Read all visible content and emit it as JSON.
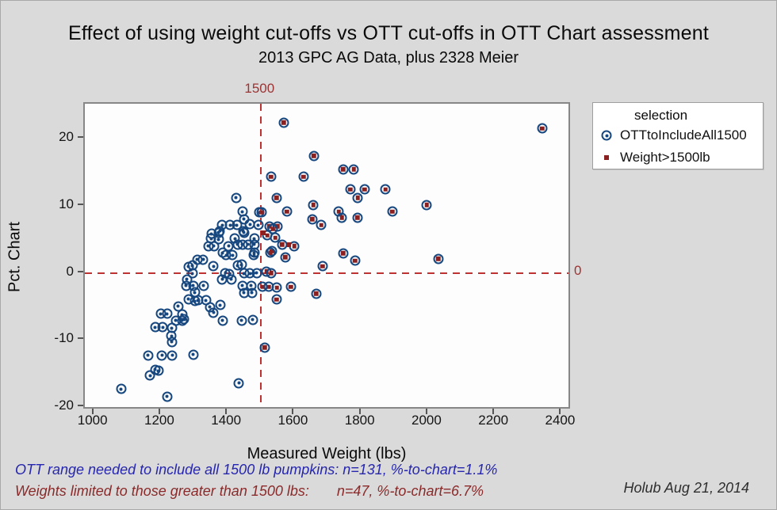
{
  "title": "Effect of using weight cut-offs vs OTT cut-offs in OTT Chart assessment",
  "subtitle": "2013 GPC AG Data, plus 2328 Meier",
  "chart_data": {
    "type": "scatter",
    "xlabel": "Measured Weight (lbs)",
    "ylabel": "Pct. Chart",
    "xlim": [
      972,
      2430
    ],
    "ylim": [
      -20.5,
      25.2
    ],
    "x_ticks": [
      1000,
      1200,
      1400,
      1600,
      1800,
      2000,
      2200,
      2400
    ],
    "y_ticks": [
      20,
      10,
      0,
      -10,
      -20
    ],
    "grid": false,
    "ref_line_x": {
      "value": 1500,
      "label": "1500"
    },
    "ref_line_y": {
      "value": 0,
      "label": "0"
    },
    "legend": {
      "title": "selection",
      "position": "top-right-outside",
      "entries": [
        {
          "label": "OTTtoIncludeAll1500",
          "marker": "circle-dot",
          "color": "#17477f",
          "n": 131
        },
        {
          "label": "Weight>1500lb",
          "marker": "square",
          "color": "#8b2020",
          "n": 47
        }
      ]
    },
    "points_note": "each point = [measured_weight_lbs, pct_chart]; ott_only = blue circled-dot, both = blue circle with red square center (in both selections), weight_only = red square only",
    "points": {
      "ott_only": [
        [
          1081,
          -17.3
        ],
        [
          1219,
          -18.4
        ],
        [
          1167,
          -15.3
        ],
        [
          1183,
          -14.4
        ],
        [
          1192,
          -14.6
        ],
        [
          1162,
          -12.3
        ],
        [
          1203,
          -12.3
        ],
        [
          1234,
          -12.3
        ],
        [
          1297,
          -12.2
        ],
        [
          1433,
          -16.4
        ],
        [
          1231,
          -9.4
        ],
        [
          1233,
          -10.3
        ],
        [
          1449,
          8.0
        ],
        [
          1183,
          -8.1
        ],
        [
          1205,
          -8.1
        ],
        [
          1233,
          -8.2
        ],
        [
          1269,
          -6.9
        ],
        [
          1200,
          -6.1
        ],
        [
          1219,
          -6.1
        ],
        [
          1264,
          -6.2
        ],
        [
          1245,
          -7.1
        ],
        [
          1264,
          -7.1
        ],
        [
          1252,
          -5.0
        ],
        [
          1494,
          9.0
        ],
        [
          1347,
          -5.1
        ],
        [
          1378,
          -4.8
        ],
        [
          1302,
          -4.2
        ],
        [
          1311,
          -4.1
        ],
        [
          1335,
          -4.1
        ],
        [
          1283,
          -3.9
        ],
        [
          1357,
          -5.9
        ],
        [
          1385,
          -7.1
        ],
        [
          1442,
          -7.1
        ],
        [
          1475,
          -7.0
        ],
        [
          1302,
          -2.9
        ],
        [
          1449,
          -3.0
        ],
        [
          1473,
          -3.0
        ],
        [
          1276,
          -1.9
        ],
        [
          1297,
          -1.9
        ],
        [
          1328,
          -1.9
        ],
        [
          1444,
          -1.9
        ],
        [
          1470,
          -1.9
        ],
        [
          1278,
          -1.0
        ],
        [
          1383,
          -1.0
        ],
        [
          1411,
          -1.0
        ],
        [
          1295,
          -0.1
        ],
        [
          1393,
          0.0
        ],
        [
          1405,
          -0.2
        ],
        [
          1449,
          -0.1
        ],
        [
          1466,
          -0.1
        ],
        [
          1487,
          0.0
        ],
        [
          1283,
          0.9
        ],
        [
          1295,
          1.1
        ],
        [
          1357,
          1.0
        ],
        [
          1430,
          1.1
        ],
        [
          1442,
          1.2
        ],
        [
          1309,
          2.0
        ],
        [
          1326,
          2.0
        ],
        [
          1395,
          2.6
        ],
        [
          1414,
          2.6
        ],
        [
          1478,
          2.6
        ],
        [
          1480,
          3.0
        ],
        [
          1385,
          3.0
        ],
        [
          1402,
          4.0
        ],
        [
          1342,
          4.0
        ],
        [
          1359,
          4.0
        ],
        [
          1430,
          4.2
        ],
        [
          1444,
          4.2
        ],
        [
          1461,
          4.2
        ],
        [
          1480,
          4.2
        ],
        [
          1480,
          5.1
        ],
        [
          1350,
          5.1
        ],
        [
          1373,
          5.0
        ],
        [
          1421,
          5.1
        ],
        [
          1352,
          5.8
        ],
        [
          1376,
          6.2
        ],
        [
          1447,
          6.2
        ],
        [
          1373,
          6.0
        ],
        [
          1449,
          6.0
        ],
        [
          1383,
          7.1
        ],
        [
          1407,
          7.1
        ],
        [
          1428,
          7.1
        ],
        [
          1492,
          7.1
        ],
        [
          1466,
          7.2
        ],
        [
          1425,
          11.2
        ],
        [
          1444,
          9.1
        ]
      ],
      "both": [
        [
          1568,
          22.4
        ],
        [
          2341,
          21.5
        ],
        [
          1658,
          17.4
        ],
        [
          1530,
          14.3
        ],
        [
          1627,
          14.3
        ],
        [
          1746,
          15.4
        ],
        [
          1777,
          15.4
        ],
        [
          1767,
          12.4
        ],
        [
          1810,
          12.4
        ],
        [
          1872,
          12.4
        ],
        [
          1789,
          11.2
        ],
        [
          1546,
          11.2
        ],
        [
          1656,
          10.1
        ],
        [
          1996,
          10.1
        ],
        [
          1501,
          9.0
        ],
        [
          1577,
          9.1
        ],
        [
          1733,
          9.1
        ],
        [
          1893,
          9.1
        ],
        [
          1653,
          8.0
        ],
        [
          1742,
          8.2
        ],
        [
          1788,
          8.2
        ],
        [
          1680,
          7.1
        ],
        [
          1525,
          6.9
        ],
        [
          1549,
          6.9
        ],
        [
          1536,
          6.5
        ],
        [
          1519,
          5.6
        ],
        [
          1542,
          5.2
        ],
        [
          1563,
          4.2
        ],
        [
          1599,
          4.0
        ],
        [
          1532,
          3.2
        ],
        [
          1528,
          3.0
        ],
        [
          1746,
          2.9
        ],
        [
          1781,
          1.8
        ],
        [
          1684,
          1.0
        ],
        [
          1572,
          2.3
        ],
        [
          1516,
          0.2
        ],
        [
          1531,
          0.0
        ],
        [
          2030,
          2.1
        ],
        [
          1504,
          -2.1
        ],
        [
          1523,
          -2.1
        ],
        [
          1547,
          -2.2
        ],
        [
          1589,
          -2.1
        ],
        [
          1546,
          -4.0
        ],
        [
          1665,
          -3.1
        ],
        [
          1511,
          -11.1
        ]
      ],
      "weight_only": [
        [
          1506,
          6.0
        ],
        [
          1582,
          4.2
        ]
      ]
    }
  },
  "annotations": {
    "note_blue": "OTT range needed to include all 1500 lb pumpkins: n=131, %-to-chart=1.1%",
    "note_red": "Weights limited to those greater than 1500 lbs:       n=47, %-to-chart=6.7%",
    "signature": "Holub Aug 21, 2014"
  },
  "colors": {
    "background": "#dadada",
    "plot_background": "#fdfdfd",
    "ott_marker": "#17477f",
    "weight_marker": "#8b2020",
    "reference_line": "#c03232",
    "note_blue_text": "#2626ae",
    "note_red_text": "#8b2a2a"
  }
}
